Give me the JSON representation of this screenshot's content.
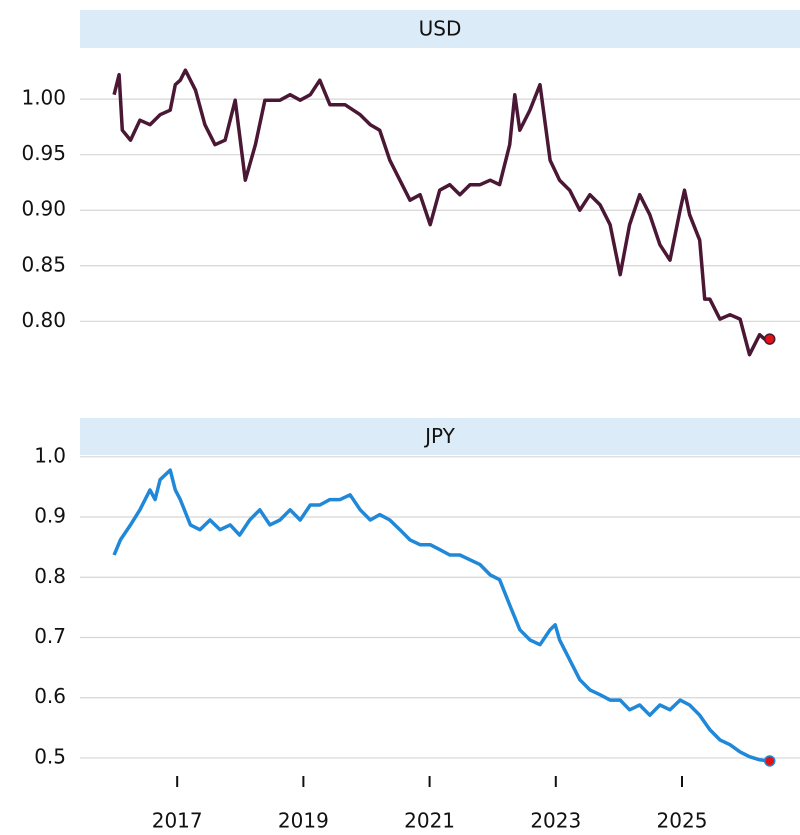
{
  "chart_data": [
    {
      "type": "line",
      "title": "USD",
      "color": "#4a1735",
      "x": [
        2016.0,
        2016.08,
        2016.13,
        2016.26,
        2016.41,
        2016.57,
        2016.73,
        2016.89,
        2016.97,
        2017.05,
        2017.13,
        2017.29,
        2017.44,
        2017.6,
        2017.76,
        2017.92,
        2018.08,
        2018.24,
        2018.39,
        2018.63,
        2018.79,
        2018.95,
        2019.11,
        2019.26,
        2019.42,
        2019.66,
        2019.9,
        2020.06,
        2020.21,
        2020.37,
        2020.53,
        2020.69,
        2020.85,
        2021.01,
        2021.16,
        2021.32,
        2021.48,
        2021.64,
        2021.8,
        2021.96,
        2022.11,
        2022.27,
        2022.35,
        2022.43,
        2022.59,
        2022.75,
        2022.91,
        2023.06,
        2023.22,
        2023.38,
        2023.54,
        2023.7,
        2023.86,
        2024.02,
        2024.17,
        2024.33,
        2024.49,
        2024.65,
        2024.81,
        2024.97,
        2025.04,
        2025.12,
        2025.28,
        2025.36,
        2025.44,
        2025.6,
        2025.76,
        2025.92,
        2026.07,
        2026.23,
        2026.31,
        2026.39
      ],
      "values": [
        1.004,
        1.022,
        0.972,
        0.963,
        0.981,
        0.977,
        0.986,
        0.99,
        1.013,
        1.017,
        1.026,
        1.008,
        0.977,
        0.959,
        0.963,
        0.999,
        0.927,
        0.959,
        0.999,
        0.999,
        1.004,
        0.999,
        1.004,
        1.017,
        0.995,
        0.995,
        0.986,
        0.977,
        0.972,
        0.945,
        0.927,
        0.909,
        0.914,
        0.887,
        0.918,
        0.923,
        0.914,
        0.923,
        0.923,
        0.927,
        0.923,
        0.959,
        1.004,
        0.972,
        0.99,
        1.013,
        0.945,
        0.927,
        0.918,
        0.9,
        0.914,
        0.905,
        0.887,
        0.842,
        0.887,
        0.914,
        0.896,
        0.869,
        0.855,
        0.9,
        0.918,
        0.896,
        0.873,
        0.82,
        0.82,
        0.802,
        0.806,
        0.802,
        0.77,
        0.788,
        0.784,
        0.784
      ],
      "xlim": [
        2015.46,
        2026.87
      ],
      "ylim": [
        0.749,
        1.046
      ],
      "yticks": [
        {
          "value": 1.0,
          "label": "1.00"
        },
        0.95,
        {
          "value": 0.9,
          "label": "0.90"
        },
        0.85,
        {
          "value": 0.8,
          "label": "0.80"
        }
      ],
      "grid": true,
      "end_marker_color": "#e01414"
    },
    {
      "type": "line",
      "title": "JPY",
      "color": "#1f88d8",
      "x": [
        2016.0,
        2016.1,
        2016.26,
        2016.41,
        2016.57,
        2016.65,
        2016.73,
        2016.89,
        2016.97,
        2017.05,
        2017.21,
        2017.36,
        2017.52,
        2017.68,
        2017.84,
        2017.99,
        2018.15,
        2018.31,
        2018.47,
        2018.63,
        2018.79,
        2018.95,
        2019.11,
        2019.26,
        2019.42,
        2019.58,
        2019.74,
        2019.9,
        2020.06,
        2020.21,
        2020.37,
        2020.53,
        2020.69,
        2020.85,
        2021.01,
        2021.16,
        2021.32,
        2021.48,
        2021.64,
        2021.8,
        2021.96,
        2022.11,
        2022.27,
        2022.43,
        2022.59,
        2022.75,
        2022.91,
        2022.99,
        2023.06,
        2023.22,
        2023.38,
        2023.54,
        2023.7,
        2023.86,
        2024.02,
        2024.17,
        2024.33,
        2024.49,
        2024.65,
        2024.81,
        2024.97,
        2025.12,
        2025.28,
        2025.44,
        2025.6,
        2025.76,
        2025.92,
        2026.07,
        2026.23,
        2026.39
      ],
      "values": [
        0.837,
        0.862,
        0.887,
        0.912,
        0.945,
        0.929,
        0.962,
        0.978,
        0.945,
        0.929,
        0.887,
        0.879,
        0.895,
        0.879,
        0.887,
        0.87,
        0.895,
        0.912,
        0.887,
        0.895,
        0.912,
        0.895,
        0.92,
        0.92,
        0.929,
        0.929,
        0.937,
        0.912,
        0.895,
        0.904,
        0.895,
        0.879,
        0.862,
        0.854,
        0.854,
        0.846,
        0.837,
        0.837,
        0.829,
        0.821,
        0.804,
        0.796,
        0.754,
        0.713,
        0.696,
        0.688,
        0.713,
        0.721,
        0.696,
        0.663,
        0.63,
        0.613,
        0.605,
        0.596,
        0.596,
        0.58,
        0.588,
        0.571,
        0.588,
        0.58,
        0.596,
        0.588,
        0.571,
        0.547,
        0.53,
        0.522,
        0.51,
        0.502,
        0.497,
        0.495
      ],
      "xlim": [
        2015.46,
        2026.87
      ],
      "ylim": [
        0.48,
        1.003
      ],
      "yticks": [
        {
          "value": 1.0,
          "label": "1.0"
        },
        0.9,
        0.8,
        0.7,
        0.6,
        0.5
      ],
      "xticks": [
        2017,
        2019,
        2021,
        2023,
        2025
      ],
      "grid": true,
      "end_marker_color": "#e01414"
    }
  ]
}
